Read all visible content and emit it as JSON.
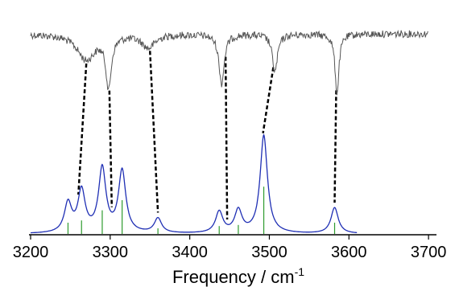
{
  "chart_data": {
    "type": "line",
    "title": "",
    "xlabel": "Frequency / cm",
    "xlabel_superscript": "-1",
    "ylabel": "",
    "xlim": [
      3200,
      3710
    ],
    "x_ticks": [
      3200,
      3300,
      3400,
      3500,
      3600,
      3700
    ],
    "grid": false,
    "legend": "none",
    "colors": {
      "experimental": "#555555",
      "simulated": "#1f2fb4",
      "stick": "#2e9b2e",
      "connector": "#000000"
    },
    "series": [
      {
        "role": "experimental",
        "baseline": 0.0,
        "bands": [
          {
            "x": 3270,
            "depth": 0.42,
            "width": 14
          },
          {
            "x": 3298,
            "depth": 0.85,
            "width": 4
          },
          {
            "x": 3348,
            "depth": 0.22,
            "width": 10
          },
          {
            "x": 3440,
            "depth": 0.82,
            "width": 4
          },
          {
            "x": 3507,
            "depth": 0.62,
            "width": 4
          },
          {
            "x": 3585,
            "depth": 0.98,
            "width": 3
          }
        ]
      },
      {
        "role": "simulated",
        "peaks": [
          {
            "x": 3247,
            "height": 0.26
          },
          {
            "x": 3264,
            "height": 0.37
          },
          {
            "x": 3290,
            "height": 0.57
          },
          {
            "x": 3315,
            "height": 0.55
          },
          {
            "x": 3360,
            "height": 0.13
          },
          {
            "x": 3437,
            "height": 0.19
          },
          {
            "x": 3461,
            "height": 0.2
          },
          {
            "x": 3493,
            "height": 0.87
          },
          {
            "x": 3582,
            "height": 0.23
          }
        ]
      }
    ],
    "sticks": [
      {
        "x": 3247,
        "height": 0.1
      },
      {
        "x": 3264,
        "height": 0.12
      },
      {
        "x": 3290,
        "height": 0.21
      },
      {
        "x": 3315,
        "height": 0.3
      },
      {
        "x": 3360,
        "height": 0.05
      },
      {
        "x": 3437,
        "height": 0.07
      },
      {
        "x": 3461,
        "height": 0.08
      },
      {
        "x": 3493,
        "height": 0.42
      },
      {
        "x": 3582,
        "height": 0.1
      }
    ],
    "assignments": [
      {
        "from_x": 3270,
        "to_x": 3260
      },
      {
        "from_x": 3299,
        "to_x": 3302
      },
      {
        "from_x": 3350,
        "to_x": 3360
      },
      {
        "from_x": 3445,
        "to_x": 3447
      },
      {
        "from_x": 3505,
        "to_x": 3492
      },
      {
        "from_x": 3584,
        "to_x": 3582
      }
    ]
  }
}
